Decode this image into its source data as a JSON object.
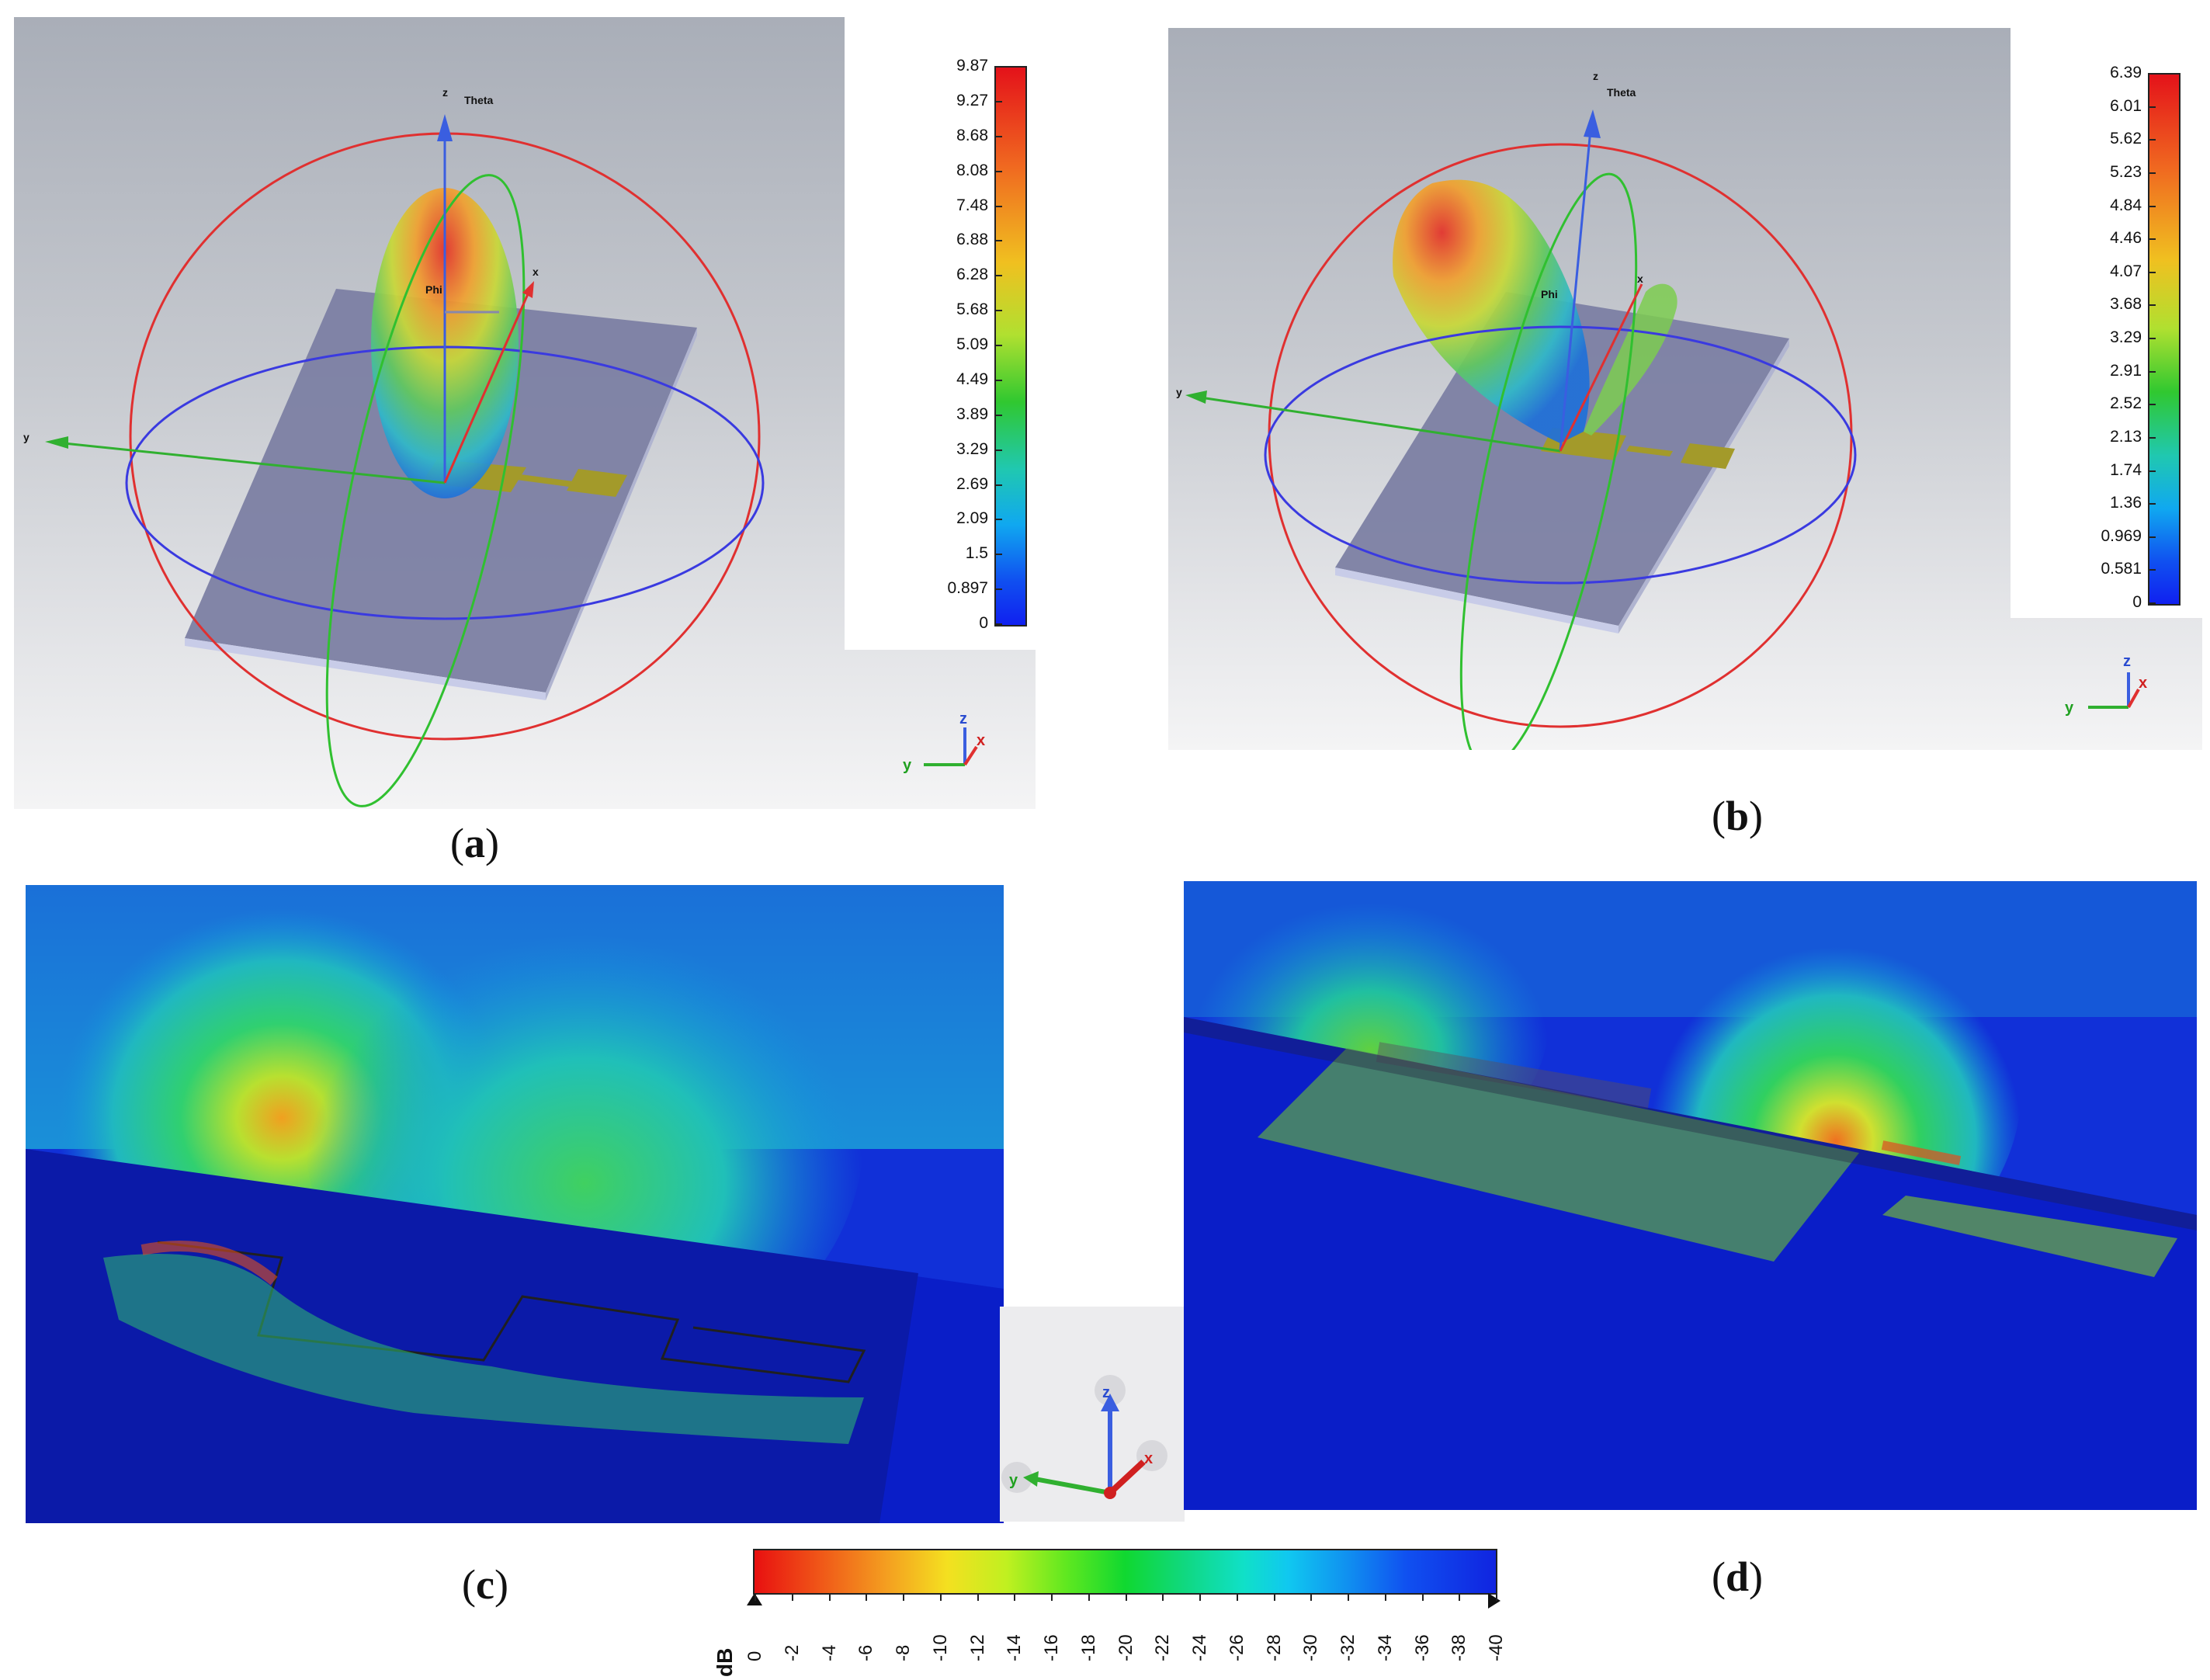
{
  "panel_a": {
    "caption_open": "(",
    "caption_letter": "a",
    "caption_close": ")",
    "scale_ticks": [
      "9.87",
      "9.27",
      "8.68",
      "8.08",
      "7.48",
      "6.88",
      "6.28",
      "5.68",
      "5.09",
      "4.49",
      "3.89",
      "3.29",
      "2.69",
      "2.09",
      "1.5",
      "0.897",
      "0"
    ],
    "axis_labels": {
      "z": "z",
      "theta": "Theta",
      "phi": "Phi",
      "x": "x",
      "y": "y"
    },
    "triad": {
      "x": "x",
      "y": "y",
      "z": "z"
    }
  },
  "panel_b": {
    "caption_open": "(",
    "caption_letter": "b",
    "caption_close": ")",
    "scale_ticks": [
      "6.39",
      "6.01",
      "5.62",
      "5.23",
      "4.84",
      "4.46",
      "4.07",
      "3.68",
      "3.29",
      "2.91",
      "2.52",
      "2.13",
      "1.74",
      "1.36",
      "0.969",
      "0.581",
      "0"
    ],
    "axis_labels": {
      "z": "z",
      "theta": "Theta",
      "phi": "Phi",
      "x": "x",
      "y": "y"
    },
    "triad": {
      "x": "x",
      "y": "y",
      "z": "z"
    }
  },
  "panel_c": {
    "caption_open": "(",
    "caption_letter": "c",
    "caption_close": ")",
    "triad": {
      "x": "x",
      "y": "y",
      "z": "z"
    }
  },
  "panel_d": {
    "caption_open": "(",
    "caption_letter": "d",
    "caption_close": ")"
  },
  "db_scale": {
    "unit": "dB",
    "ticks": [
      "0",
      "-2",
      "-4",
      "-6",
      "-8",
      "-10",
      "-12",
      "-14",
      "-16",
      "-18",
      "-20",
      "-22",
      "-24",
      "-26",
      "-28",
      "-30",
      "-32",
      "-34",
      "-36",
      "-38",
      "-40"
    ]
  },
  "colors": {
    "ground_plane": "#7c7fa3",
    "patch": "#a39a2a",
    "circle_red": "#e03030",
    "circle_blue": "#3a3ae0",
    "circle_green": "#30c030",
    "field_bg": "#1130d8"
  }
}
